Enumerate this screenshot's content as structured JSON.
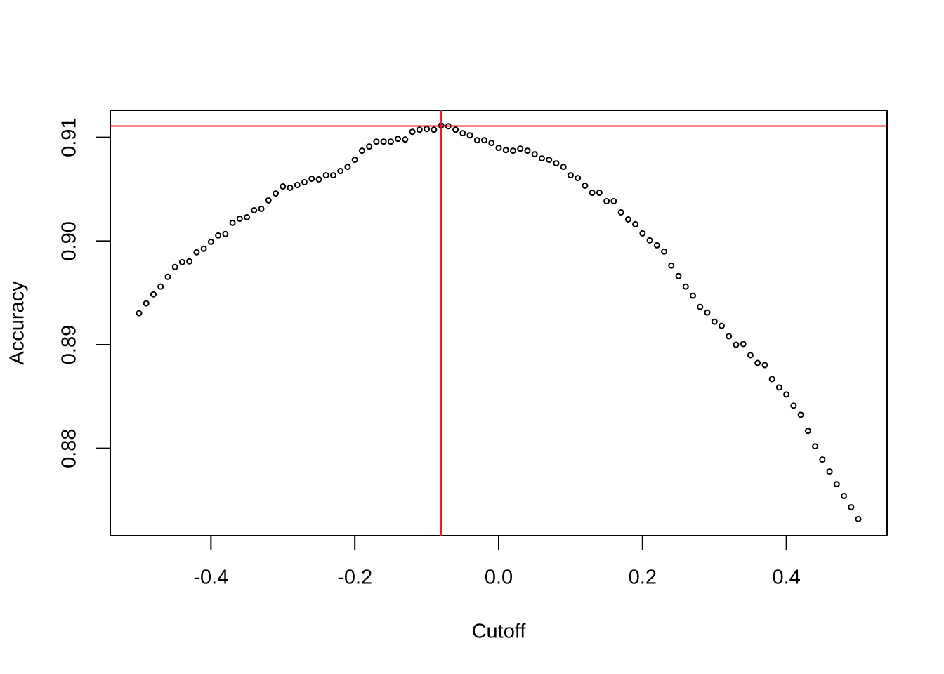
{
  "chart_data": {
    "type": "scatter",
    "x_label": "Cutoff",
    "y_label": "Accuracy",
    "x": [
      -0.5,
      -0.49,
      -0.48,
      -0.47,
      -0.46,
      -0.45,
      -0.44,
      -0.43,
      -0.42,
      -0.41,
      -0.4,
      -0.39,
      -0.38,
      -0.37,
      -0.36,
      -0.35,
      -0.34,
      -0.33,
      -0.32,
      -0.31,
      -0.3,
      -0.29,
      -0.28,
      -0.27,
      -0.26,
      -0.25,
      -0.24,
      -0.23,
      -0.22,
      -0.21,
      -0.2,
      -0.19,
      -0.18,
      -0.17,
      -0.16,
      -0.15,
      -0.14,
      -0.13,
      -0.12,
      -0.11,
      -0.1,
      -0.09,
      -0.08,
      -0.07,
      -0.06,
      -0.05,
      -0.04,
      -0.03,
      -0.02,
      -0.01,
      0,
      0.01,
      0.02,
      0.03,
      0.04,
      0.05,
      0.06,
      0.07,
      0.08,
      0.09,
      0.1,
      0.11,
      0.12,
      0.13,
      0.14,
      0.15,
      0.16,
      0.17,
      0.18,
      0.19,
      0.2,
      0.21,
      0.22,
      0.23,
      0.24,
      0.25,
      0.26,
      0.27,
      0.28,
      0.29,
      0.3,
      0.31,
      0.32,
      0.33,
      0.34,
      0.35,
      0.36,
      0.37,
      0.38,
      0.39,
      0.4,
      0.41,
      0.42,
      0.43,
      0.44,
      0.45,
      0.46,
      0.47,
      0.48,
      0.49,
      0.5
    ],
    "values": [
      0.89304,
      0.89399,
      0.89486,
      0.89561,
      0.89655,
      0.8975,
      0.89797,
      0.89804,
      0.89892,
      0.89926,
      0.89993,
      0.90054,
      0.90068,
      0.90176,
      0.90216,
      0.9023,
      0.90297,
      0.90311,
      0.90392,
      0.90459,
      0.90527,
      0.90514,
      0.90541,
      0.90568,
      0.90601,
      0.90595,
      0.90635,
      0.90635,
      0.90676,
      0.90716,
      0.90784,
      0.90872,
      0.90912,
      0.90959,
      0.90959,
      0.90959,
      0.90986,
      0.9098,
      0.91054,
      0.91074,
      0.91081,
      0.91074,
      0.91115,
      0.91108,
      0.91074,
      0.91041,
      0.9102,
      0.90973,
      0.90973,
      0.90946,
      0.90899,
      0.90878,
      0.90872,
      0.90892,
      0.90872,
      0.90838,
      0.90797,
      0.90784,
      0.9075,
      0.90716,
      0.90635,
      0.90608,
      0.90534,
      0.90466,
      0.90466,
      0.90385,
      0.90385,
      0.90277,
      0.90209,
      0.90162,
      0.90074,
      0.90007,
      0.89959,
      0.89899,
      0.89764,
      0.89662,
      0.89561,
      0.89473,
      0.89365,
      0.89311,
      0.89223,
      0.89182,
      0.89081,
      0.89,
      0.89007,
      0.88899,
      0.88824,
      0.88804,
      0.88669,
      0.88588,
      0.8852,
      0.88412,
      0.88324,
      0.88169,
      0.8802,
      0.87892,
      0.87777,
      0.87655,
      0.87541,
      0.87432,
      0.87318
    ],
    "color": "#000000",
    "xlim": [
      -0.54,
      0.54
    ],
    "xticks": [
      -0.4,
      -0.2,
      {
        "value": 0,
        "label": "0.0"
      },
      0.2,
      0.4
    ],
    "ylim": [
      0.87158,
      0.91262
    ],
    "yticks": [
      0.88,
      0.89,
      {
        "value": 0.9,
        "label": "0.90"
      },
      0.91
    ],
    "vline": -0.08,
    "hline": 0.9111,
    "line_color": "#e8141c"
  }
}
